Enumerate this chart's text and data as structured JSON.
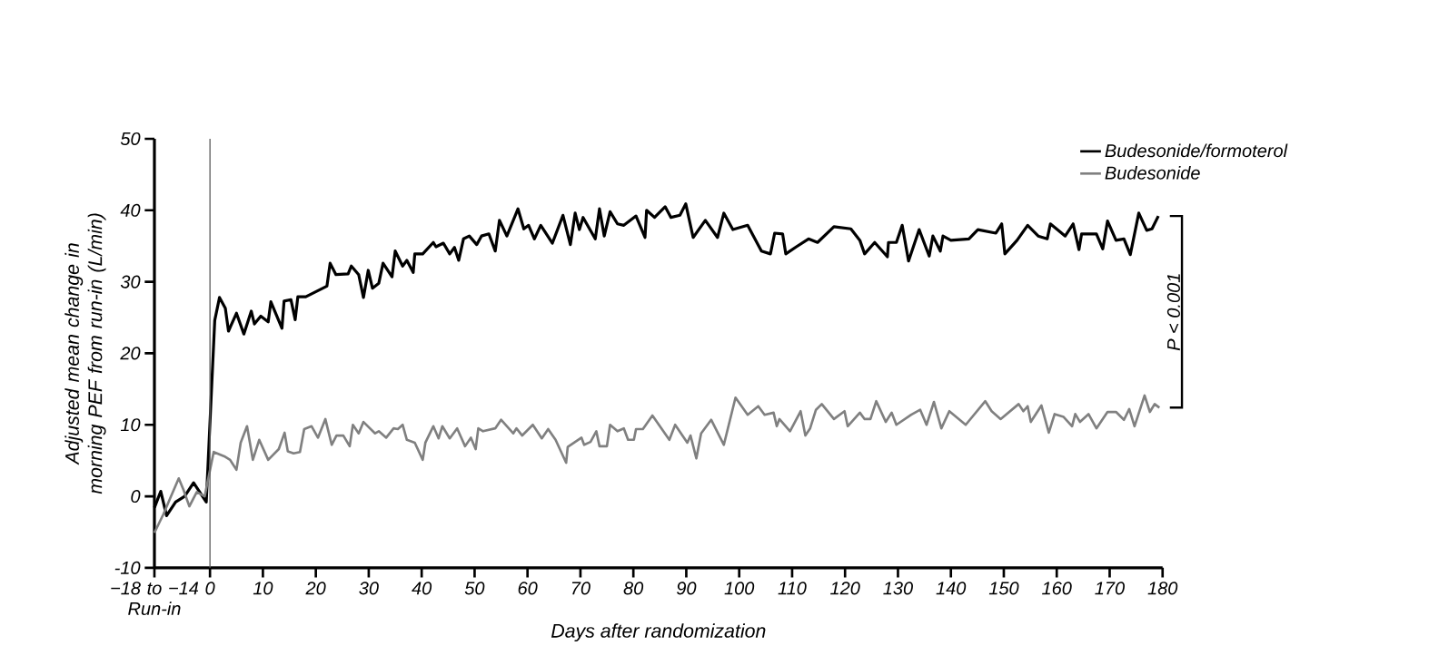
{
  "chart_data": {
    "type": "line",
    "xlabel": "Days after randomization",
    "ylabel": "Adjusted mean change in morning PEF from run-in (L/min)",
    "xlim": [
      -10.5,
      180
    ],
    "ylim": [
      -10,
      50
    ],
    "xticks": [
      {
        "value": -10.5,
        "label": "−18 to −14 Run-in"
      },
      0,
      10,
      20,
      30,
      40,
      50,
      60,
      70,
      80,
      90,
      100,
      110,
      120,
      130,
      140,
      150,
      160,
      170,
      180
    ],
    "yticks": [
      -10,
      0,
      10,
      20,
      30,
      40,
      50
    ],
    "legend": "top right",
    "marker": "none",
    "line_style": "solid",
    "ref_lines": [
      {
        "axis": "x",
        "value": 0,
        "color": "#606060"
      }
    ],
    "annotations": [
      "P < 0.001"
    ],
    "series": [
      {
        "name": "Budesonide/formoterol",
        "color": "#000000",
        "x": [
          -10.5,
          -9.3,
          -8.2,
          -6.5,
          -4.8,
          -3.1,
          -0.7,
          0.9,
          1.8,
          2.9,
          3.5,
          5,
          6.4,
          7.8,
          8.4,
          9.6,
          11,
          11.5,
          13.6,
          14,
          15.3,
          16.1,
          16.6,
          18.1,
          22.1,
          22.7,
          23.8,
          26.1,
          26.7,
          28.1,
          29,
          29.9,
          30.7,
          31.9,
          32.7,
          34.4,
          35,
          36.4,
          37.2,
          38.4,
          38.7,
          40.2,
          42.2,
          42.7,
          44.1,
          45.3,
          46.2,
          47,
          47.9,
          49,
          50.4,
          51.3,
          52.7,
          53.9,
          54.7,
          56.1,
          58.2,
          59.3,
          60.2,
          61.3,
          62.5,
          64.7,
          66.7,
          68.1,
          69,
          69.8,
          70.5,
          72.8,
          73.6,
          74.5,
          75.6,
          77,
          78.2,
          80.5,
          82.2,
          82.5,
          84,
          86,
          87.1,
          88.8,
          89.9,
          91.3,
          93.6,
          95.9,
          97.1,
          98.8,
          101.6,
          104.2,
          105.9,
          106.7,
          108.2,
          108.8,
          110.8,
          113.1,
          114.8,
          117.9,
          121.1,
          122.8,
          123.7,
          125.6,
          128,
          128.2,
          129.7,
          130.8,
          132,
          134,
          135.9,
          136.6,
          138,
          138.5,
          140,
          143.4,
          145.1,
          148.5,
          149.6,
          150.2,
          152.5,
          154.5,
          156.5,
          158.2,
          158.8,
          161.6,
          163.1,
          164.2,
          164.7,
          167.5,
          168.7,
          169.6,
          171.2,
          172.7,
          173.9,
          175.5,
          177,
          178,
          179.2
        ],
        "values": [
          -1.6,
          0.7,
          -2.7,
          -0.8,
          0,
          1.9,
          -0.8,
          24.6,
          27.8,
          26.3,
          23.1,
          25.6,
          22.7,
          25.9,
          24.1,
          25.2,
          24.4,
          27.2,
          23.5,
          27.3,
          27.5,
          24.7,
          27.9,
          27.9,
          29.4,
          32.6,
          31.0,
          31.1,
          32.2,
          31.0,
          27.8,
          31.6,
          29.1,
          29.8,
          32.6,
          30.7,
          34.3,
          32.2,
          33,
          31.3,
          33.9,
          33.9,
          35.5,
          34.9,
          35.4,
          33.9,
          34.8,
          33,
          36,
          36.4,
          35.2,
          36.4,
          36.7,
          34.3,
          38.6,
          36.4,
          40.2,
          37.4,
          37.9,
          36,
          37.9,
          35.4,
          39.3,
          35.2,
          39.6,
          37.3,
          39,
          36,
          40.2,
          36.4,
          39.8,
          38.1,
          37.9,
          39.2,
          36.2,
          40,
          39,
          40.5,
          39,
          39.3,
          40.9,
          36.2,
          38.6,
          36.2,
          39.6,
          37.3,
          37.9,
          34.3,
          33.9,
          36.8,
          36.7,
          33.9,
          34.9,
          36,
          35.5,
          37.7,
          37.4,
          35.8,
          33.9,
          35.5,
          33.5,
          35.5,
          35.5,
          37.9,
          32.9,
          37.3,
          33.6,
          36.4,
          34.3,
          36.4,
          35.8,
          36,
          37.3,
          36.8,
          38.1,
          33.9,
          35.8,
          37.9,
          36.4,
          36,
          38.1,
          36.4,
          38.1,
          34.5,
          36.7,
          36.7,
          34.6,
          38.5,
          35.8,
          36,
          33.8,
          39.6,
          37.2,
          37.4,
          39.2
        ]
      },
      {
        "name": "Budesonide",
        "color": "#808080",
        "x": [
          -10.5,
          -8.8,
          -7.6,
          -5.9,
          -5.0,
          -3.9,
          -2.5,
          -1.0,
          0.7,
          2.7,
          3.8,
          5,
          5.8,
          7,
          8.1,
          9.3,
          11,
          13,
          14.1,
          14.7,
          15.8,
          17,
          17.8,
          19.2,
          20.4,
          21.8,
          23,
          23.9,
          25.2,
          26.4,
          27,
          28.1,
          29,
          31.2,
          31.9,
          33.3,
          34.7,
          35.5,
          36.4,
          37.2,
          38.7,
          40.2,
          40.7,
          42.2,
          43.2,
          43.9,
          45.3,
          46.7,
          48.2,
          49.3,
          50.2,
          50.7,
          51.6,
          53.9,
          55,
          57.3,
          57.9,
          59,
          61,
          62.7,
          63.9,
          65.3,
          67.3,
          67.6,
          70.2,
          70.7,
          71.9,
          73,
          73.6,
          75,
          75.6,
          77,
          78.2,
          79,
          80.1,
          80.5,
          81.8,
          83.6,
          86.8,
          87.9,
          90.2,
          90.8,
          91.9,
          92.8,
          94.7,
          97.1,
          99.3,
          101.6,
          103.6,
          104.8,
          106.5,
          107.1,
          107.6,
          109.6,
          111.6,
          112.5,
          113.4,
          114.5,
          115.6,
          117.9,
          119.9,
          120.5,
          122.8,
          123.7,
          124.8,
          125.9,
          127.7,
          128.8,
          129.7,
          132.5,
          134.2,
          135.4,
          136.8,
          138.2,
          139.7,
          142.8,
          146.5,
          147.7,
          149.4,
          152.8,
          153.7,
          154.5,
          155.1,
          157.1,
          158.5,
          159.6,
          161.3,
          162.9,
          163.5,
          164.4,
          166,
          167.5,
          169.6,
          171.2,
          172.7,
          173.7,
          174.7,
          176.6,
          177.6,
          178.5,
          179.4
        ],
        "values": [
          -5.1,
          -2.5,
          -0.4,
          2.5,
          0.9,
          -1.4,
          0.6,
          0,
          6.2,
          5.6,
          5.1,
          3.7,
          7.5,
          9.8,
          5.1,
          7.9,
          5.1,
          6.6,
          8.9,
          6.3,
          6,
          6.2,
          9.4,
          9.8,
          8.2,
          10.8,
          7.2,
          8.5,
          8.5,
          7,
          10,
          8.8,
          10.4,
          8.8,
          9.1,
          8.2,
          9.5,
          9.4,
          10,
          7.9,
          7.5,
          5.1,
          7.5,
          9.8,
          8.1,
          9.8,
          8.1,
          9.5,
          7,
          8.2,
          6.6,
          9.5,
          9.1,
          9.5,
          10.7,
          8.8,
          9.5,
          8.5,
          10,
          8.1,
          9.4,
          7.9,
          4.7,
          6.9,
          8.2,
          7.2,
          7.6,
          9.1,
          7,
          7,
          10,
          9.1,
          9.5,
          7.9,
          7.9,
          9.4,
          9.4,
          11.3,
          7.9,
          10,
          7.5,
          8.5,
          5.3,
          8.8,
          10.7,
          7.2,
          13.8,
          11.4,
          12.6,
          11.4,
          11.7,
          9.8,
          10.8,
          9.1,
          11.9,
          8.5,
          9.5,
          12.1,
          12.9,
          10.8,
          11.9,
          9.8,
          11.7,
          10.8,
          10.8,
          13.3,
          10.4,
          11.7,
          10,
          11.4,
          12.1,
          10,
          13.2,
          9.5,
          11.9,
          10,
          13.3,
          11.9,
          10.8,
          12.9,
          11.9,
          12.6,
          10.4,
          12.7,
          8.9,
          11.5,
          11.1,
          9.8,
          11.5,
          10.4,
          11.5,
          9.5,
          11.8,
          11.8,
          10.7,
          12.2,
          9.8,
          14.1,
          11.8,
          12.9,
          12.4
        ]
      }
    ]
  }
}
